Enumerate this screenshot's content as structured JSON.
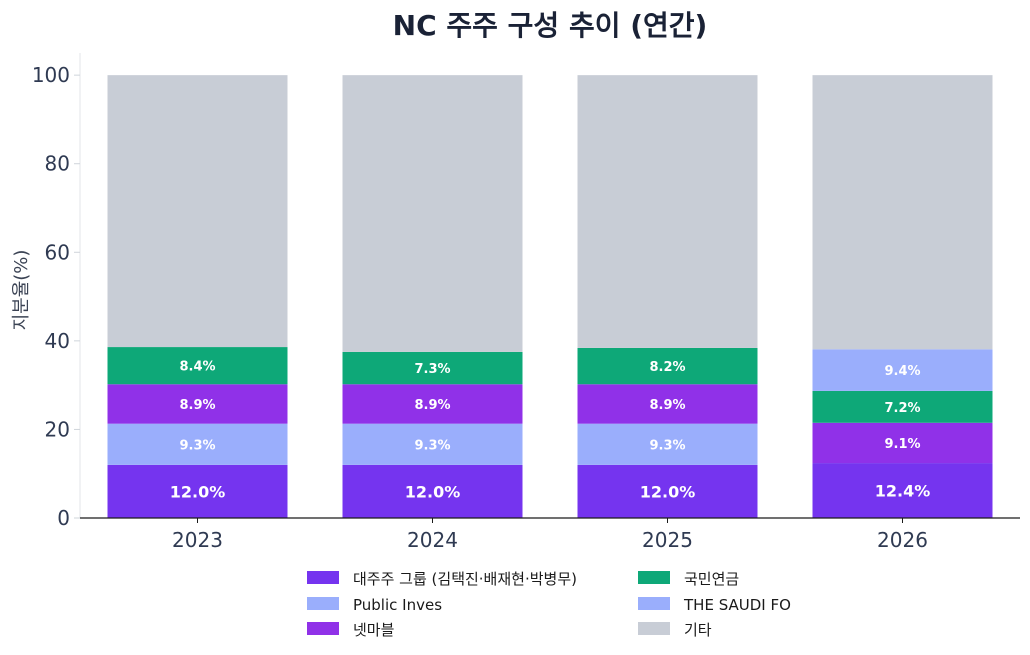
{
  "chart_data": {
    "type": "bar",
    "stacked": true,
    "title": "NC 주주 구성 추이 (연간)",
    "xlabel": "",
    "ylabel": "지분율(%)",
    "ylim": [
      0,
      105
    ],
    "yticks": [
      0,
      20,
      40,
      60,
      80,
      100
    ],
    "grid": false,
    "legend_position": "bottom",
    "categories": [
      "2023",
      "2024",
      "2025",
      "2026"
    ],
    "series": [
      {
        "name": "대주주 그룹 (김택진·배재현·박병무)",
        "color": "#7534ef",
        "values": [
          12.0,
          12.0,
          12.0,
          12.4
        ],
        "labels": [
          "12.0%",
          "12.0%",
          "12.0%",
          "12.4%"
        ]
      },
      {
        "name": "Public Inves",
        "color": "#9aaefc",
        "values": [
          9.3,
          9.3,
          9.3,
          0
        ],
        "labels": [
          "9.3%",
          "9.3%",
          "9.3%",
          ""
        ]
      },
      {
        "name": "넷마블",
        "color": "#9031e8",
        "values": [
          8.9,
          8.9,
          8.9,
          9.1
        ],
        "labels": [
          "8.9%",
          "8.9%",
          "8.9%",
          "9.1%"
        ]
      },
      {
        "name": "국민연금",
        "color": "#0ea878",
        "values": [
          8.4,
          7.3,
          8.2,
          7.2
        ],
        "labels": [
          "8.4%",
          "7.3%",
          "8.2%",
          "7.2%"
        ]
      },
      {
        "name": "THE SAUDI FO",
        "color": "#9aaefc",
        "values": [
          0,
          0,
          0,
          9.4
        ],
        "labels": [
          "",
          "",
          "",
          "9.4%"
        ]
      },
      {
        "name": "기타",
        "color": "#c8cdd6",
        "values": [
          61.4,
          62.5,
          61.6,
          61.9
        ],
        "labels": [
          "",
          "",
          "",
          ""
        ]
      }
    ]
  }
}
